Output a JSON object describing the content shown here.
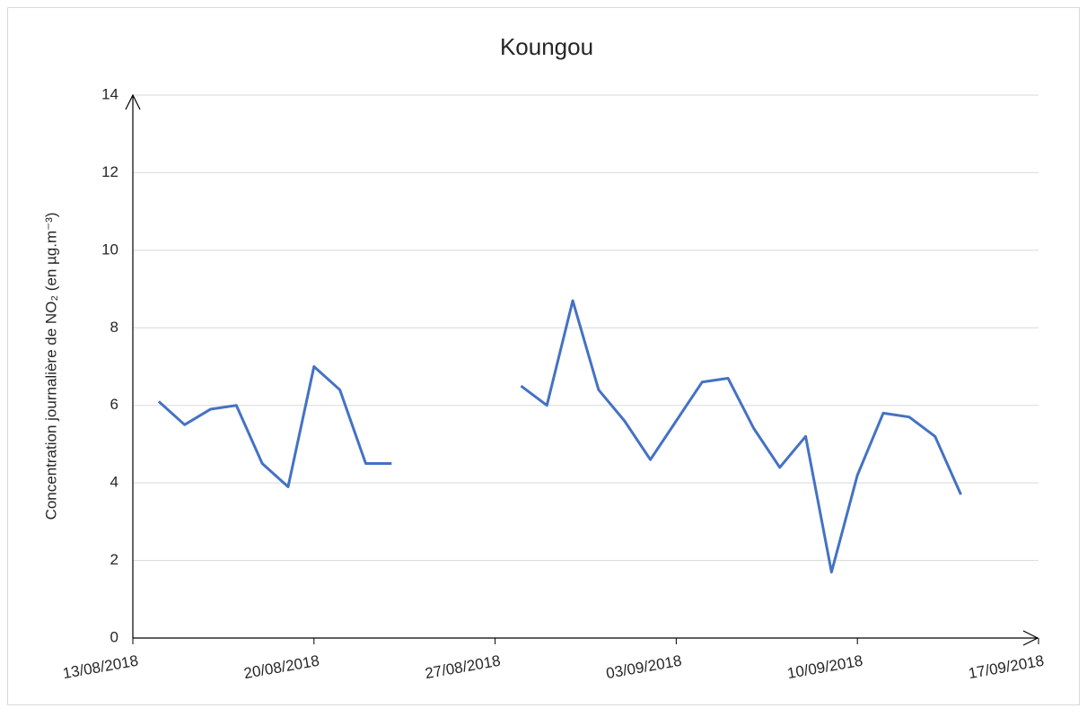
{
  "chart_data": {
    "type": "line",
    "title": "Koungou",
    "y_label": "Concentration journalière de NO₂ (en µg.m⁻³)",
    "x": [
      "14/08/2018",
      "15/08/2018",
      "16/08/2018",
      "17/08/2018",
      "18/08/2018",
      "19/08/2018",
      "20/08/2018",
      "21/08/2018",
      "22/08/2018",
      "23/08/2018",
      "24/08/2018",
      "25/08/2018",
      "26/08/2018",
      "27/08/2018",
      "28/08/2018",
      "29/08/2018",
      "30/08/2018",
      "31/08/2018",
      "01/09/2018",
      "02/09/2018",
      "03/09/2018",
      "04/09/2018",
      "05/09/2018",
      "06/09/2018",
      "07/09/2018",
      "08/09/2018",
      "09/09/2018",
      "10/09/2018",
      "11/09/2018",
      "12/09/2018",
      "13/09/2018",
      "14/09/2018"
    ],
    "series": [
      {
        "name": "Koungou",
        "color": "#4472c4",
        "values": [
          6.1,
          5.5,
          5.9,
          6.0,
          4.5,
          3.9,
          7.0,
          6.4,
          4.5,
          4.5,
          null,
          null,
          null,
          null,
          6.5,
          6.0,
          8.7,
          6.4,
          5.6,
          4.6,
          5.6,
          6.6,
          6.7,
          5.4,
          4.4,
          5.2,
          1.7,
          4.2,
          5.8,
          5.7,
          5.2,
          3.7
        ]
      }
    ],
    "xlim": [
      "13/08/2018",
      "17/09/2018"
    ],
    "xticks": [
      "13/08/2018",
      "20/08/2018",
      "27/08/2018",
      "03/09/2018",
      "10/09/2018",
      "17/09/2018"
    ],
    "ylim": [
      0,
      14
    ],
    "yticks": [
      0,
      2,
      4,
      6,
      8,
      10,
      12,
      14
    ],
    "grid": true
  }
}
